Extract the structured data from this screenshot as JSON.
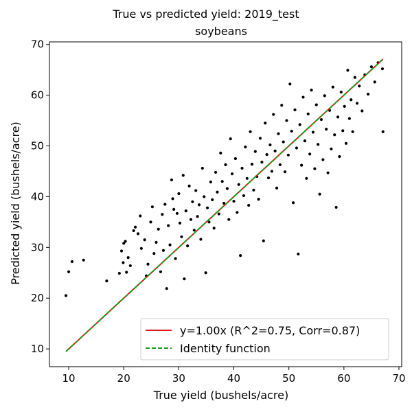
{
  "chart_data": {
    "type": "scatter",
    "suptitle": "True vs predicted yield: 2019_test",
    "title": "soybeans",
    "xlabel": "True yield (bushels/acre)",
    "ylabel": "Predicted yield (bushels/acre)",
    "xlim": [
      6.5,
      70.5
    ],
    "ylim": [
      6.5,
      70.5
    ],
    "xticks": [
      10,
      20,
      30,
      40,
      50,
      60,
      70
    ],
    "yticks": [
      10,
      20,
      30,
      40,
      50,
      60,
      70
    ],
    "grid": false,
    "legend_position": "lower-right",
    "series": [
      {
        "name": "y=1.00x (R^2=0.75, Corr=0.87)",
        "kind": "line",
        "style": "solid",
        "color": "#e31a1c",
        "x": [
          9.5,
          67.1
        ],
        "y": [
          9.5,
          67.1
        ]
      },
      {
        "name": "Identity function",
        "kind": "line",
        "style": "dashed",
        "color": "#1a9e1a",
        "x": [
          9.5,
          67.3
        ],
        "y": [
          9.5,
          67.3
        ]
      },
      {
        "name": "",
        "kind": "points",
        "color": "#000000",
        "points": [
          [
            9.5,
            20.5
          ],
          [
            10.0,
            25.2
          ],
          [
            10.6,
            27.2
          ],
          [
            12.7,
            27.5
          ],
          [
            16.9,
            23.4
          ],
          [
            19.2,
            24.9
          ],
          [
            19.6,
            29.3
          ],
          [
            19.9,
            27.0
          ],
          [
            20.0,
            30.8
          ],
          [
            20.3,
            31.2
          ],
          [
            20.5,
            25.1
          ],
          [
            20.8,
            28.0
          ],
          [
            21.2,
            26.4
          ],
          [
            21.8,
            33.3
          ],
          [
            22.1,
            34.0
          ],
          [
            22.6,
            32.7
          ],
          [
            23.0,
            36.2
          ],
          [
            23.2,
            29.8
          ],
          [
            23.8,
            31.5
          ],
          [
            24.1,
            24.4
          ],
          [
            24.4,
            26.7
          ],
          [
            24.9,
            35.0
          ],
          [
            25.2,
            38.0
          ],
          [
            25.5,
            28.8
          ],
          [
            25.9,
            31.0
          ],
          [
            26.3,
            33.6
          ],
          [
            26.7,
            25.2
          ],
          [
            27.0,
            36.5
          ],
          [
            27.2,
            29.4
          ],
          [
            27.5,
            38.5
          ],
          [
            27.8,
            21.9
          ],
          [
            28.1,
            34.3
          ],
          [
            28.4,
            30.5
          ],
          [
            28.7,
            43.3
          ],
          [
            28.9,
            39.6
          ],
          [
            29.1,
            37.5
          ],
          [
            29.4,
            27.8
          ],
          [
            29.7,
            36.7
          ],
          [
            30.0,
            40.6
          ],
          [
            30.2,
            34.8
          ],
          [
            30.5,
            32.1
          ],
          [
            30.8,
            44.2
          ],
          [
            31.0,
            23.8
          ],
          [
            31.3,
            37.2
          ],
          [
            31.6,
            30.3
          ],
          [
            31.9,
            42.1
          ],
          [
            32.2,
            35.5
          ],
          [
            32.5,
            39.0
          ],
          [
            32.8,
            33.4
          ],
          [
            33.1,
            41.2
          ],
          [
            33.4,
            36.1
          ],
          [
            33.7,
            38.4
          ],
          [
            34.0,
            31.6
          ],
          [
            34.3,
            45.6
          ],
          [
            34.6,
            40.0
          ],
          [
            34.9,
            25.0
          ],
          [
            35.2,
            37.8
          ],
          [
            35.5,
            35.0
          ],
          [
            35.8,
            42.9
          ],
          [
            36.1,
            39.4
          ],
          [
            36.4,
            33.8
          ],
          [
            36.7,
            44.8
          ],
          [
            37.0,
            40.9
          ],
          [
            37.3,
            36.6
          ],
          [
            37.6,
            48.6
          ],
          [
            37.9,
            43.0
          ],
          [
            38.2,
            38.7
          ],
          [
            38.5,
            46.3
          ],
          [
            38.8,
            41.6
          ],
          [
            39.1,
            35.5
          ],
          [
            39.4,
            51.4
          ],
          [
            39.7,
            44.5
          ],
          [
            40.0,
            39.1
          ],
          [
            40.3,
            47.5
          ],
          [
            40.6,
            36.9
          ],
          [
            40.9,
            42.4
          ],
          [
            41.2,
            28.4
          ],
          [
            41.5,
            45.6
          ],
          [
            41.8,
            40.2
          ],
          [
            42.1,
            49.8
          ],
          [
            42.4,
            43.6
          ],
          [
            42.7,
            38.3
          ],
          [
            43.0,
            52.8
          ],
          [
            43.3,
            46.4
          ],
          [
            43.6,
            41.3
          ],
          [
            43.9,
            48.9
          ],
          [
            44.2,
            44.0
          ],
          [
            44.5,
            39.5
          ],
          [
            44.8,
            51.5
          ],
          [
            45.1,
            46.8
          ],
          [
            45.4,
            31.3
          ],
          [
            45.7,
            54.5
          ],
          [
            46.0,
            48.3
          ],
          [
            46.3,
            43.7
          ],
          [
            46.6,
            50.2
          ],
          [
            46.9,
            45.0
          ],
          [
            47.2,
            56.2
          ],
          [
            47.5,
            49.0
          ],
          [
            47.8,
            41.7
          ],
          [
            48.1,
            52.4
          ],
          [
            48.4,
            46.3
          ],
          [
            48.7,
            58.0
          ],
          [
            49.0,
            50.8
          ],
          [
            49.3,
            44.9
          ],
          [
            49.6,
            55.0
          ],
          [
            49.9,
            48.2
          ],
          [
            50.2,
            62.2
          ],
          [
            50.5,
            52.9
          ],
          [
            50.8,
            38.8
          ],
          [
            51.1,
            57.1
          ],
          [
            51.4,
            49.6
          ],
          [
            51.7,
            28.7
          ],
          [
            52.0,
            54.2
          ],
          [
            52.3,
            46.2
          ],
          [
            52.6,
            59.6
          ],
          [
            52.9,
            51.0
          ],
          [
            53.2,
            43.6
          ],
          [
            53.5,
            56.3
          ],
          [
            53.8,
            48.4
          ],
          [
            54.1,
            61.0
          ],
          [
            54.4,
            52.7
          ],
          [
            54.7,
            45.5
          ],
          [
            55.0,
            58.1
          ],
          [
            55.3,
            50.3
          ],
          [
            55.6,
            40.5
          ],
          [
            55.9,
            55.2
          ],
          [
            56.2,
            47.3
          ],
          [
            56.5,
            59.9
          ],
          [
            56.8,
            53.3
          ],
          [
            57.1,
            44.7
          ],
          [
            57.4,
            57.0
          ],
          [
            57.7,
            49.4
          ],
          [
            58.0,
            61.6
          ],
          [
            58.3,
            52.2
          ],
          [
            58.6,
            37.9
          ],
          [
            58.9,
            55.7
          ],
          [
            59.2,
            47.9
          ],
          [
            59.5,
            60.6
          ],
          [
            59.8,
            53.0
          ],
          [
            60.1,
            57.8
          ],
          [
            60.4,
            50.5
          ],
          [
            60.7,
            64.9
          ],
          [
            61.0,
            55.4
          ],
          [
            61.3,
            59.1
          ],
          [
            61.6,
            52.8
          ],
          [
            62.0,
            63.5
          ],
          [
            62.4,
            58.4
          ],
          [
            62.8,
            61.8
          ],
          [
            63.3,
            56.9
          ],
          [
            63.8,
            64.0
          ],
          [
            64.4,
            60.2
          ],
          [
            65.0,
            65.6
          ],
          [
            65.6,
            62.6
          ],
          [
            66.2,
            66.4
          ],
          [
            67.0,
            65.2
          ],
          [
            67.1,
            52.8
          ]
        ]
      }
    ]
  }
}
